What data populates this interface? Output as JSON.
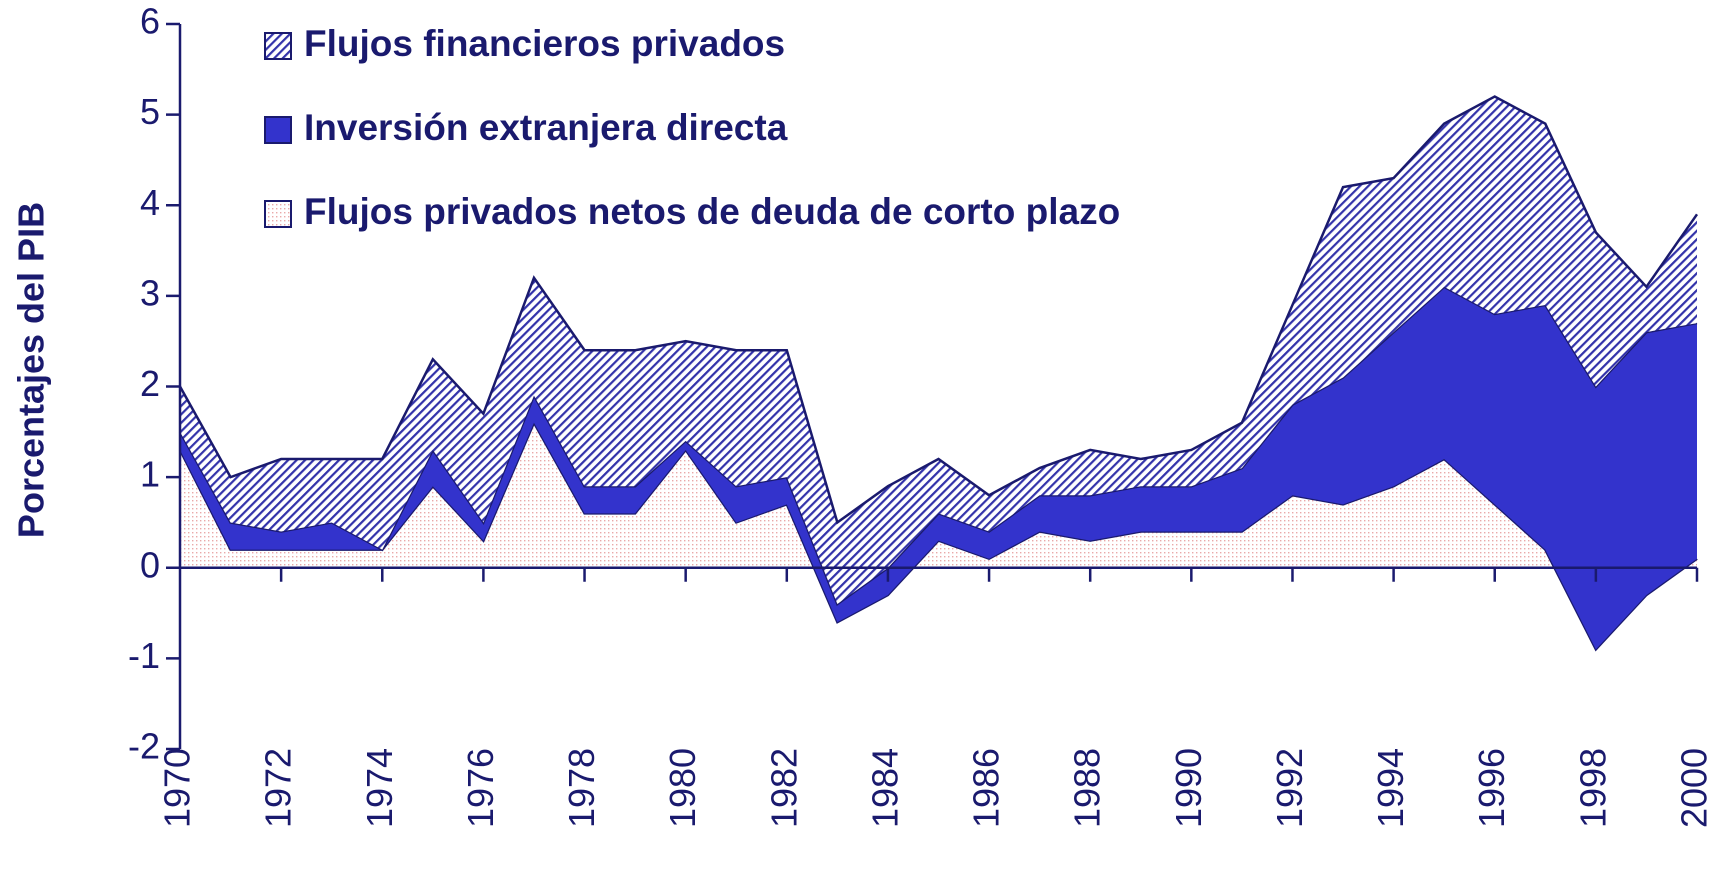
{
  "chart_data": {
    "type": "stacked-area",
    "y_label": "Porcentajes del PIB",
    "x": [
      1970,
      1971,
      1972,
      1973,
      1974,
      1975,
      1976,
      1977,
      1978,
      1979,
      1980,
      1981,
      1982,
      1983,
      1984,
      1985,
      1986,
      1987,
      1988,
      1989,
      1990,
      1991,
      1992,
      1993,
      1994,
      1995,
      1996,
      1997,
      1998,
      1999,
      2000
    ],
    "series": [
      {
        "name": "Flujos privados netos de deuda de corto plazo",
        "color": "#f6dada",
        "values": [
          1.3,
          0.2,
          0.2,
          0.2,
          0.2,
          0.9,
          0.3,
          1.6,
          0.6,
          0.6,
          1.3,
          0.5,
          0.7,
          -0.6,
          -0.3,
          0.3,
          0.1,
          0.4,
          0.3,
          0.4,
          0.4,
          0.4,
          0.8,
          0.7,
          0.9,
          1.2,
          0.7,
          0.2,
          -0.9,
          -0.3,
          0.1
        ]
      },
      {
        "name": "Inversión extranjera directa",
        "color": "#3333cc",
        "values": [
          0.2,
          0.3,
          0.2,
          0.3,
          0.0,
          0.4,
          0.2,
          0.3,
          0.3,
          0.3,
          0.1,
          0.4,
          0.3,
          0.2,
          0.3,
          0.3,
          0.3,
          0.4,
          0.5,
          0.5,
          0.5,
          0.7,
          1.0,
          1.4,
          1.7,
          1.9,
          2.1,
          2.7,
          2.9,
          2.9,
          2.6
        ]
      },
      {
        "name": "Flujos financieros privados",
        "color": "#3333aa",
        "values": [
          0.5,
          0.5,
          0.8,
          0.7,
          1.0,
          1.0,
          1.2,
          1.3,
          1.5,
          1.5,
          1.1,
          1.5,
          1.4,
          0.9,
          0.9,
          0.6,
          0.4,
          0.3,
          0.5,
          0.3,
          0.4,
          0.5,
          1.1,
          2.1,
          1.7,
          1.8,
          2.4,
          2.0,
          1.7,
          0.5,
          1.2
        ]
      }
    ],
    "xlim": [
      1970,
      2000
    ],
    "xticks": [
      1970,
      1972,
      1974,
      1976,
      1978,
      1980,
      1982,
      1984,
      1986,
      1988,
      1990,
      1992,
      1994,
      1996,
      1998,
      2000
    ],
    "ylim": [
      -2,
      6
    ],
    "yticks": [
      -2,
      -1,
      0,
      1,
      2,
      3,
      4,
      5,
      6
    ],
    "legend": "top-left"
  }
}
